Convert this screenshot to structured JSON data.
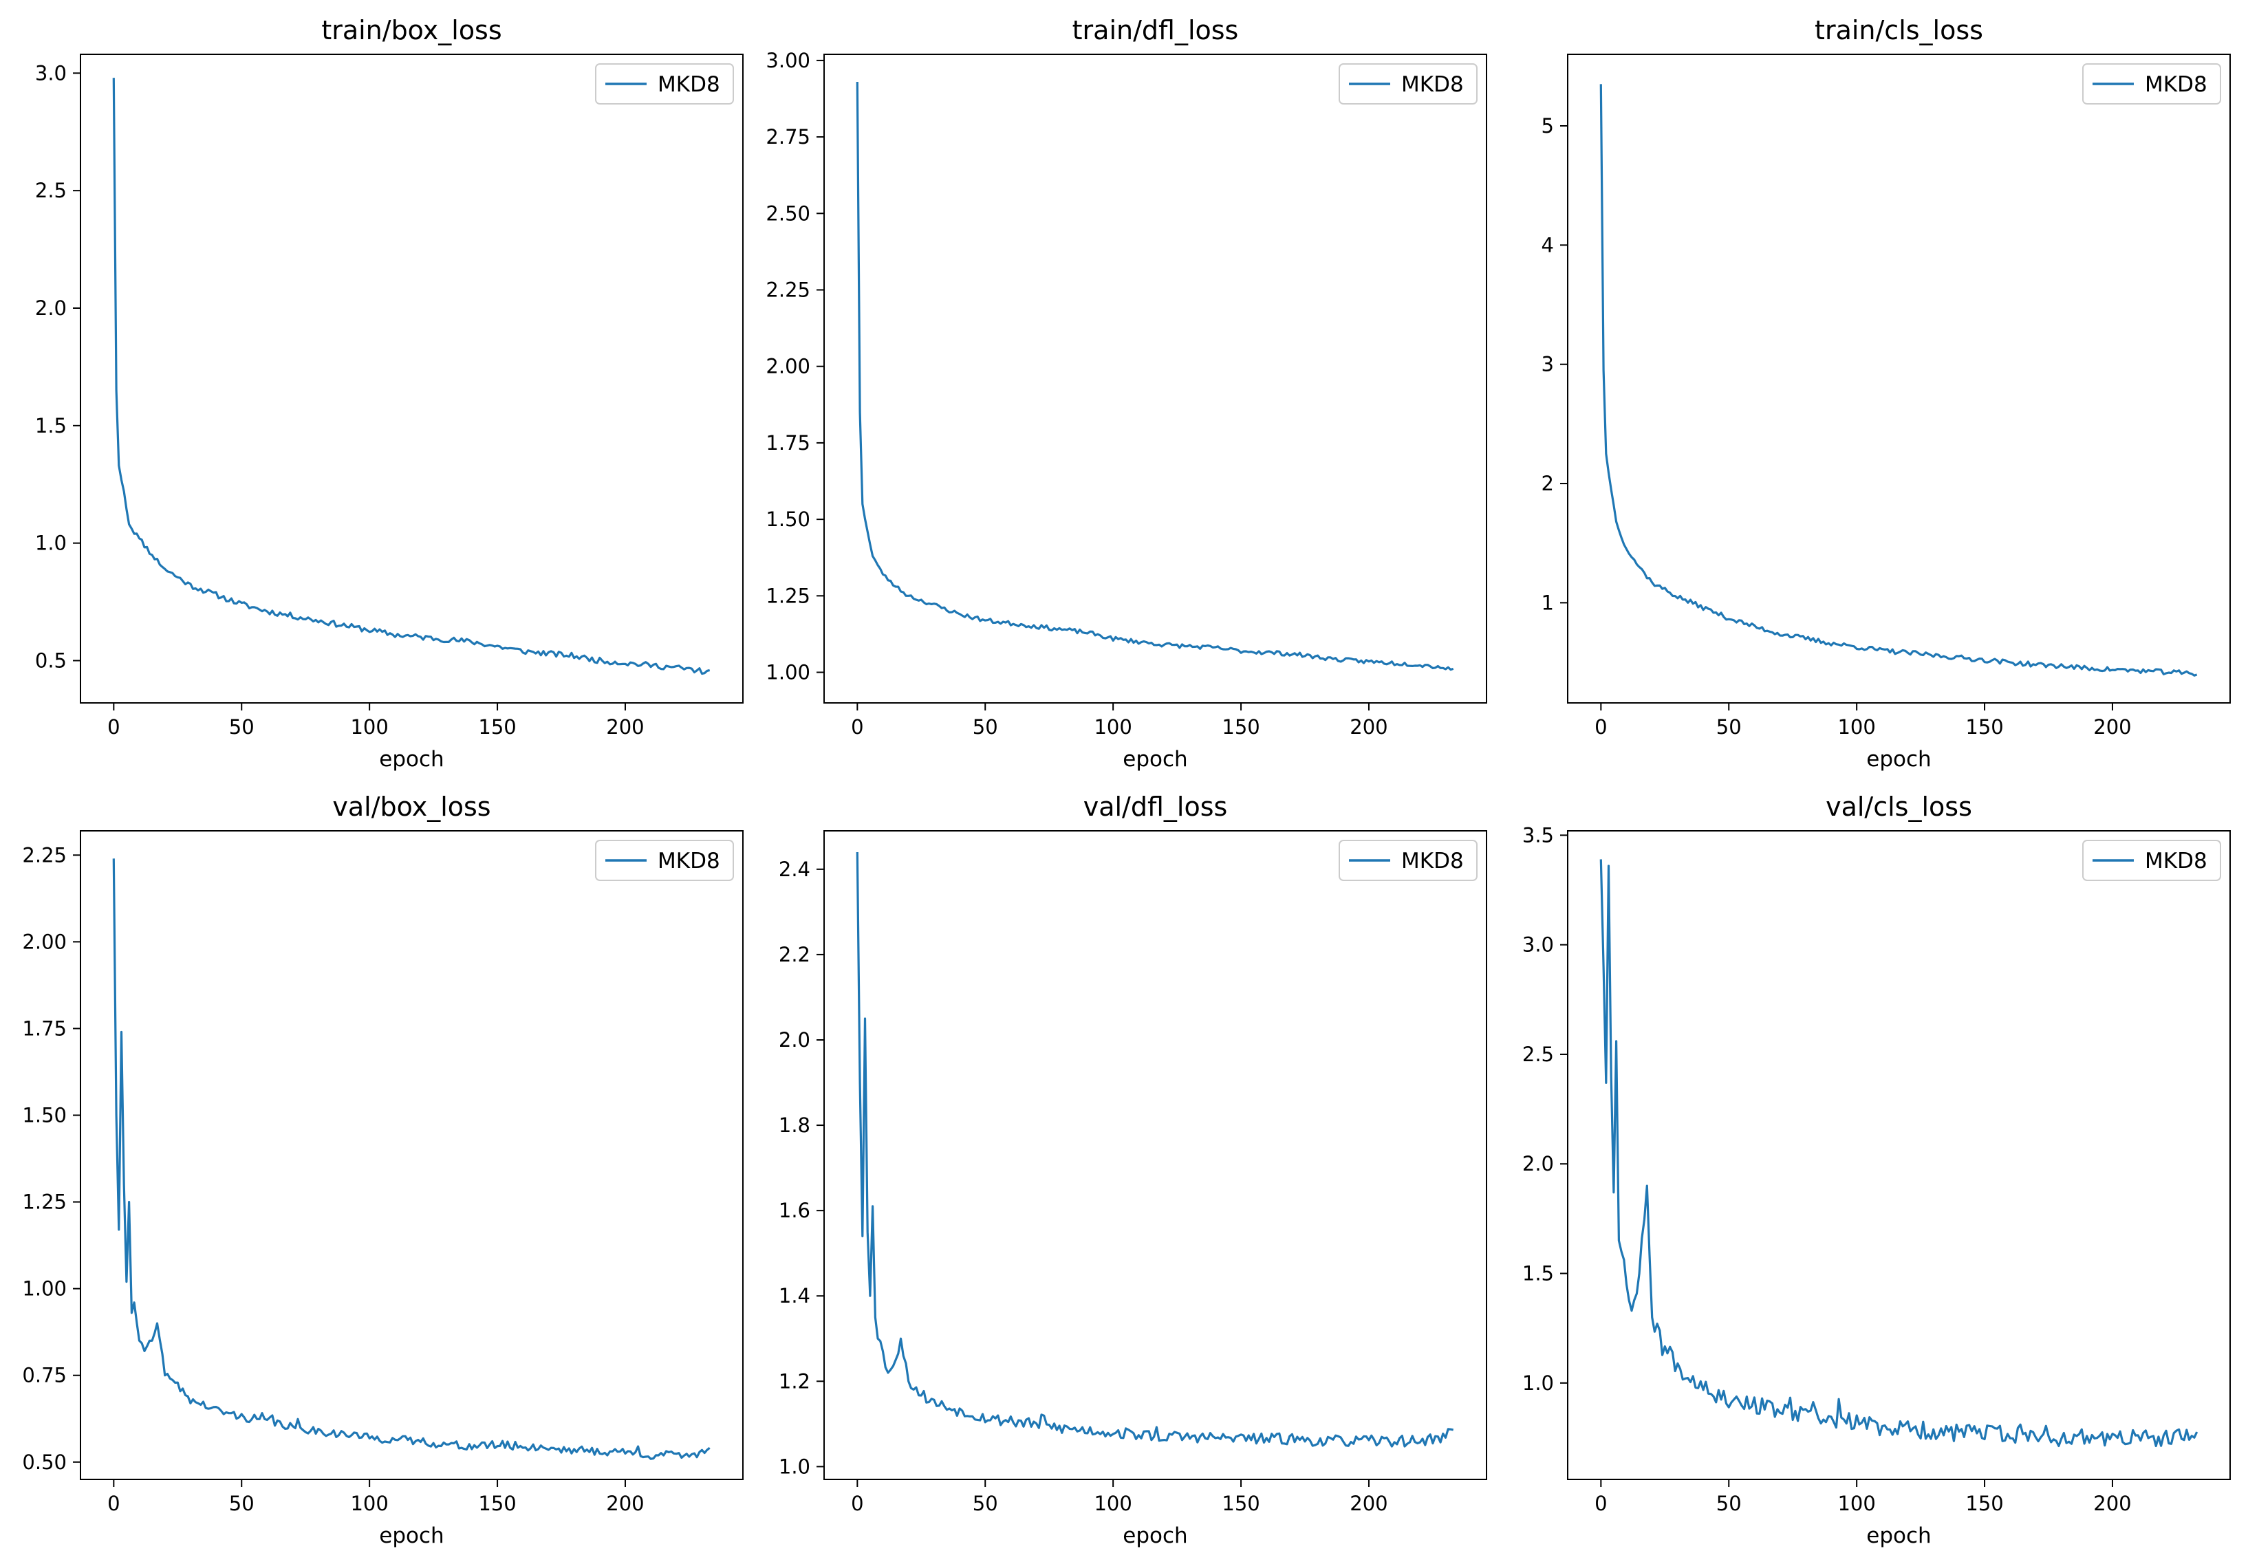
{
  "line_color": "#1f77b4",
  "chart_data": [
    {
      "type": "line",
      "title": "train/box_loss",
      "xlabel": "epoch",
      "ylabel": "",
      "xlim": [
        -13,
        246
      ],
      "ylim": [
        0.32,
        3.08
      ],
      "xticks": [
        0,
        50,
        100,
        150,
        200
      ],
      "yticks": [
        0.5,
        1.0,
        1.5,
        2.0,
        2.5,
        3.0
      ],
      "ytick_decimals": 1,
      "legend_position": "top-right",
      "series": [
        {
          "name": "MKD8",
          "shape": [
            [
              0,
              2.98
            ],
            [
              1,
              1.65
            ],
            [
              2,
              1.33
            ],
            [
              4,
              1.22
            ],
            [
              6,
              1.08
            ],
            [
              10,
              1.02
            ],
            [
              15,
              0.95
            ],
            [
              20,
              0.89
            ],
            [
              30,
              0.82
            ],
            [
              40,
              0.78
            ],
            [
              50,
              0.74
            ],
            [
              60,
              0.71
            ],
            [
              70,
              0.69
            ],
            [
              80,
              0.67
            ],
            [
              90,
              0.65
            ],
            [
              100,
              0.63
            ],
            [
              110,
              0.61
            ],
            [
              120,
              0.6
            ],
            [
              130,
              0.59
            ],
            [
              140,
              0.58
            ],
            [
              150,
              0.56
            ],
            [
              160,
              0.54
            ],
            [
              170,
              0.53
            ],
            [
              180,
              0.52
            ],
            [
              190,
              0.5
            ],
            [
              200,
              0.49
            ],
            [
              210,
              0.48
            ],
            [
              220,
              0.47
            ],
            [
              230,
              0.455
            ],
            [
              233,
              0.45
            ]
          ],
          "noise": 0.012,
          "spike_count": 0,
          "spike_amp": 0,
          "seed": 11
        }
      ]
    },
    {
      "type": "line",
      "title": "train/dfl_loss",
      "xlabel": "epoch",
      "ylabel": "",
      "xlim": [
        -13,
        246
      ],
      "ylim": [
        0.9,
        3.02
      ],
      "xticks": [
        0,
        50,
        100,
        150,
        200
      ],
      "yticks": [
        1.0,
        1.25,
        1.5,
        1.75,
        2.0,
        2.25,
        2.5,
        2.75,
        3.0
      ],
      "ytick_decimals": 2,
      "legend_position": "top-right",
      "series": [
        {
          "name": "MKD8",
          "shape": [
            [
              0,
              2.93
            ],
            [
              1,
              1.85
            ],
            [
              2,
              1.55
            ],
            [
              4,
              1.46
            ],
            [
              6,
              1.38
            ],
            [
              10,
              1.32
            ],
            [
              15,
              1.28
            ],
            [
              20,
              1.25
            ],
            [
              30,
              1.22
            ],
            [
              40,
              1.19
            ],
            [
              50,
              1.17
            ],
            [
              60,
              1.16
            ],
            [
              70,
              1.15
            ],
            [
              80,
              1.14
            ],
            [
              90,
              1.13
            ],
            [
              100,
              1.11
            ],
            [
              110,
              1.1
            ],
            [
              120,
              1.09
            ],
            [
              130,
              1.085
            ],
            [
              140,
              1.08
            ],
            [
              150,
              1.07
            ],
            [
              160,
              1.065
            ],
            [
              170,
              1.06
            ],
            [
              180,
              1.05
            ],
            [
              190,
              1.04
            ],
            [
              200,
              1.035
            ],
            [
              210,
              1.03
            ],
            [
              220,
              1.025
            ],
            [
              230,
              1.015
            ],
            [
              233,
              1.01
            ]
          ],
          "noise": 0.007,
          "spike_count": 0,
          "spike_amp": 0,
          "seed": 23
        }
      ]
    },
    {
      "type": "line",
      "title": "train/cls_loss",
      "xlabel": "epoch",
      "ylabel": "",
      "xlim": [
        -13,
        246
      ],
      "ylim": [
        0.16,
        5.6
      ],
      "xticks": [
        0,
        50,
        100,
        150,
        200
      ],
      "yticks": [
        1,
        2,
        3,
        4,
        5
      ],
      "ytick_decimals": 0,
      "legend_position": "top-right",
      "series": [
        {
          "name": "MKD8",
          "shape": [
            [
              0,
              5.35
            ],
            [
              1,
              2.95
            ],
            [
              2,
              2.25
            ],
            [
              4,
              1.95
            ],
            [
              6,
              1.68
            ],
            [
              10,
              1.45
            ],
            [
              15,
              1.3
            ],
            [
              20,
              1.17
            ],
            [
              30,
              1.05
            ],
            [
              40,
              0.96
            ],
            [
              50,
              0.87
            ],
            [
              60,
              0.8
            ],
            [
              70,
              0.74
            ],
            [
              80,
              0.7
            ],
            [
              90,
              0.66
            ],
            [
              100,
              0.63
            ],
            [
              110,
              0.6
            ],
            [
              120,
              0.58
            ],
            [
              130,
              0.56
            ],
            [
              140,
              0.54
            ],
            [
              150,
              0.52
            ],
            [
              160,
              0.5
            ],
            [
              170,
              0.48
            ],
            [
              180,
              0.47
            ],
            [
              190,
              0.45
            ],
            [
              200,
              0.44
            ],
            [
              210,
              0.43
            ],
            [
              220,
              0.42
            ],
            [
              230,
              0.41
            ],
            [
              233,
              0.4
            ]
          ],
          "noise": 0.02,
          "spike_count": 0,
          "spike_amp": 0,
          "seed": 37
        }
      ]
    },
    {
      "type": "line",
      "title": "val/box_loss",
      "xlabel": "epoch",
      "ylabel": "",
      "xlim": [
        -13,
        246
      ],
      "ylim": [
        0.45,
        2.32
      ],
      "xticks": [
        0,
        50,
        100,
        150,
        200
      ],
      "yticks": [
        0.5,
        0.75,
        1.0,
        1.25,
        1.5,
        1.75,
        2.0,
        2.25
      ],
      "ytick_decimals": 2,
      "legend_position": "top-right",
      "series": [
        {
          "name": "MKD8",
          "shape": [
            [
              0,
              2.24
            ],
            [
              1,
              1.5
            ],
            [
              2,
              1.17
            ],
            [
              3,
              1.74
            ],
            [
              4,
              1.3
            ],
            [
              5,
              1.02
            ],
            [
              6,
              1.25
            ],
            [
              7,
              0.93
            ],
            [
              8,
              0.96
            ],
            [
              10,
              0.85
            ],
            [
              12,
              0.82
            ],
            [
              15,
              0.85
            ],
            [
              17,
              0.9
            ],
            [
              20,
              0.75
            ],
            [
              25,
              0.72
            ],
            [
              30,
              0.68
            ],
            [
              40,
              0.65
            ],
            [
              50,
              0.63
            ],
            [
              60,
              0.62
            ],
            [
              70,
              0.6
            ],
            [
              80,
              0.59
            ],
            [
              90,
              0.58
            ],
            [
              100,
              0.57
            ],
            [
              110,
              0.565
            ],
            [
              120,
              0.56
            ],
            [
              130,
              0.55
            ],
            [
              140,
              0.545
            ],
            [
              150,
              0.55
            ],
            [
              160,
              0.545
            ],
            [
              170,
              0.54
            ],
            [
              180,
              0.535
            ],
            [
              190,
              0.53
            ],
            [
              200,
              0.53
            ],
            [
              210,
              0.52
            ],
            [
              220,
              0.52
            ],
            [
              230,
              0.525
            ],
            [
              233,
              0.545
            ]
          ],
          "noise": 0.012,
          "spike_count": 10,
          "spike_amp": 0.025,
          "seed": 41
        }
      ]
    },
    {
      "type": "line",
      "title": "val/dfl_loss",
      "xlabel": "epoch",
      "ylabel": "",
      "xlim": [
        -13,
        246
      ],
      "ylim": [
        0.97,
        2.49
      ],
      "xticks": [
        0,
        50,
        100,
        150,
        200
      ],
      "yticks": [
        1.0,
        1.2,
        1.4,
        1.6,
        1.8,
        2.0,
        2.2,
        2.4
      ],
      "ytick_decimals": 1,
      "legend_position": "top-right",
      "series": [
        {
          "name": "MKD8",
          "shape": [
            [
              0,
              2.44
            ],
            [
              1,
              1.9
            ],
            [
              2,
              1.54
            ],
            [
              3,
              2.05
            ],
            [
              4,
              1.55
            ],
            [
              5,
              1.4
            ],
            [
              6,
              1.61
            ],
            [
              7,
              1.35
            ],
            [
              8,
              1.3
            ],
            [
              10,
              1.27
            ],
            [
              12,
              1.22
            ],
            [
              15,
              1.25
            ],
            [
              17,
              1.3
            ],
            [
              20,
              1.2
            ],
            [
              25,
              1.17
            ],
            [
              30,
              1.15
            ],
            [
              40,
              1.13
            ],
            [
              50,
              1.115
            ],
            [
              60,
              1.105
            ],
            [
              70,
              1.1
            ],
            [
              80,
              1.09
            ],
            [
              90,
              1.085
            ],
            [
              100,
              1.08
            ],
            [
              110,
              1.075
            ],
            [
              120,
              1.07
            ],
            [
              130,
              1.07
            ],
            [
              140,
              1.068
            ],
            [
              150,
              1.065
            ],
            [
              160,
              1.065
            ],
            [
              170,
              1.065
            ],
            [
              180,
              1.06
            ],
            [
              190,
              1.06
            ],
            [
              200,
              1.06
            ],
            [
              210,
              1.06
            ],
            [
              220,
              1.06
            ],
            [
              230,
              1.07
            ],
            [
              233,
              1.095
            ]
          ],
          "noise": 0.013,
          "spike_count": 10,
          "spike_amp": 0.03,
          "seed": 53
        }
      ]
    },
    {
      "type": "line",
      "title": "val/cls_loss",
      "xlabel": "epoch",
      "ylabel": "",
      "xlim": [
        -13,
        246
      ],
      "ylim": [
        0.56,
        3.52
      ],
      "xticks": [
        0,
        50,
        100,
        150,
        200
      ],
      "yticks": [
        1.0,
        1.5,
        2.0,
        2.5,
        3.0,
        3.5
      ],
      "ytick_decimals": 1,
      "legend_position": "top-right",
      "series": [
        {
          "name": "MKD8",
          "shape": [
            [
              0,
              3.39
            ],
            [
              1,
              2.9
            ],
            [
              2,
              2.37
            ],
            [
              3,
              3.36
            ],
            [
              4,
              2.4
            ],
            [
              5,
              1.87
            ],
            [
              6,
              2.56
            ],
            [
              7,
              1.65
            ],
            [
              8,
              1.6
            ],
            [
              10,
              1.45
            ],
            [
              12,
              1.33
            ],
            [
              15,
              1.5
            ],
            [
              18,
              1.9
            ],
            [
              20,
              1.3
            ],
            [
              25,
              1.15
            ],
            [
              30,
              1.08
            ],
            [
              35,
              1.02
            ],
            [
              40,
              1.0
            ],
            [
              45,
              0.95
            ],
            [
              50,
              0.93
            ],
            [
              60,
              0.9
            ],
            [
              70,
              0.87
            ],
            [
              80,
              0.85
            ],
            [
              90,
              0.83
            ],
            [
              100,
              0.82
            ],
            [
              110,
              0.8
            ],
            [
              120,
              0.79
            ],
            [
              130,
              0.78
            ],
            [
              140,
              0.77
            ],
            [
              150,
              0.77
            ],
            [
              160,
              0.76
            ],
            [
              170,
              0.76
            ],
            [
              180,
              0.75
            ],
            [
              190,
              0.75
            ],
            [
              200,
              0.75
            ],
            [
              210,
              0.75
            ],
            [
              220,
              0.74
            ],
            [
              230,
              0.76
            ],
            [
              233,
              0.75
            ]
          ],
          "noise": 0.04,
          "spike_count": 16,
          "spike_amp": 0.12,
          "seed": 67
        }
      ]
    }
  ]
}
